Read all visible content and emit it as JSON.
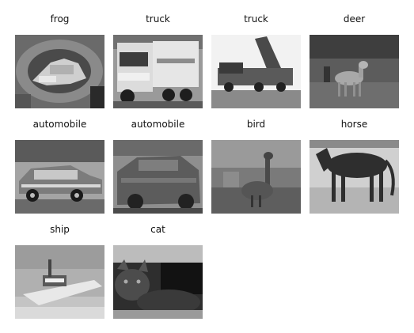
{
  "grid": {
    "items": [
      {
        "label": "frog"
      },
      {
        "label": "truck"
      },
      {
        "label": "truck"
      },
      {
        "label": "deer"
      },
      {
        "label": "automobile"
      },
      {
        "label": "automobile"
      },
      {
        "label": "bird"
      },
      {
        "label": "horse"
      },
      {
        "label": "ship"
      },
      {
        "label": "cat"
      }
    ]
  },
  "style": {
    "text_color": "#111111",
    "background": "#ffffff"
  }
}
